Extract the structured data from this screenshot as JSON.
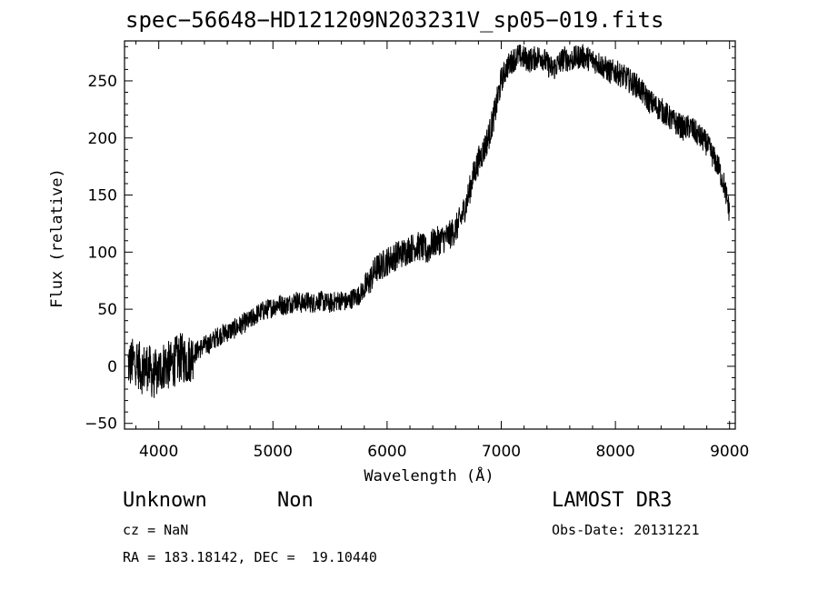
{
  "chart_data": {
    "type": "line",
    "title": "spec−56648−HD121209N203231V_sp05−019.fits",
    "xlabel": "Wavelength (Å)",
    "ylabel": "Flux (relative)",
    "xlim": [
      3700,
      9050
    ],
    "ylim": [
      -55,
      285
    ],
    "xticks": [
      4000,
      5000,
      6000,
      7000,
      8000,
      9000
    ],
    "xtick_labels": [
      "4000",
      "5000",
      "6000",
      "7000",
      "8000",
      "9000"
    ],
    "yticks": [
      -50,
      0,
      50,
      100,
      150,
      200,
      250
    ],
    "ytick_labels": [
      "−50",
      "0",
      "50",
      "100",
      "150",
      "200",
      "250"
    ],
    "grid": false,
    "series": [
      {
        "x": [
          3750,
          3800,
          3850,
          3900,
          3950,
          4000,
          4050,
          4100,
          4150,
          4200,
          4250,
          4300,
          4350,
          4400,
          4450,
          4500,
          4550,
          4600,
          4650,
          4700,
          4750,
          4800,
          4850,
          4900,
          4950,
          5000,
          5050,
          5100,
          5150,
          5200,
          5250,
          5300,
          5350,
          5400,
          5450,
          5500,
          5550,
          5600,
          5650,
          5700,
          5750,
          5800,
          5850,
          5900,
          5950,
          6000,
          6050,
          6100,
          6150,
          6200,
          6250,
          6300,
          6350,
          6400,
          6450,
          6500,
          6550,
          6600,
          6650,
          6700,
          6750,
          6800,
          6850,
          6900,
          6950,
          7000,
          7050,
          7100,
          7150,
          7200,
          7250,
          7300,
          7350,
          7400,
          7450,
          7500,
          7550,
          7600,
          7650,
          7700,
          7750,
          7800,
          7850,
          7900,
          7950,
          8000,
          8050,
          8100,
          8150,
          8200,
          8250,
          8300,
          8350,
          8400,
          8450,
          8500,
          8550,
          8600,
          8650,
          8700,
          8750,
          8800,
          8850,
          8900,
          8950,
          9000
        ],
        "y": [
          2,
          5,
          -3,
          0,
          -8,
          -5,
          2,
          0,
          5,
          8,
          5,
          10,
          15,
          18,
          20,
          25,
          28,
          30,
          32,
          35,
          38,
          40,
          45,
          48,
          50,
          52,
          55,
          53,
          55,
          58,
          55,
          57,
          55,
          58,
          56,
          55,
          57,
          58,
          56,
          60,
          62,
          68,
          75,
          85,
          88,
          92,
          95,
          98,
          100,
          103,
          105,
          105,
          100,
          108,
          110,
          112,
          115,
          120,
          130,
          145,
          165,
          180,
          190,
          205,
          225,
          250,
          262,
          268,
          272,
          270,
          268,
          270,
          272,
          265,
          260,
          265,
          270,
          268,
          270,
          272,
          270,
          268,
          266,
          262,
          258,
          258,
          255,
          252,
          248,
          245,
          238,
          232,
          228,
          225,
          220,
          215,
          212,
          208,
          210,
          205,
          200,
          195,
          185,
          175,
          160,
          135
        ]
      }
    ]
  },
  "info": {
    "class_label": "Unknown",
    "subclass_label": "Non",
    "survey": "LAMOST DR3",
    "cz": "cz = NaN",
    "obs_date": "Obs-Date: 20131221",
    "coords": "RA = 183.18142, DEC =  19.10440"
  }
}
